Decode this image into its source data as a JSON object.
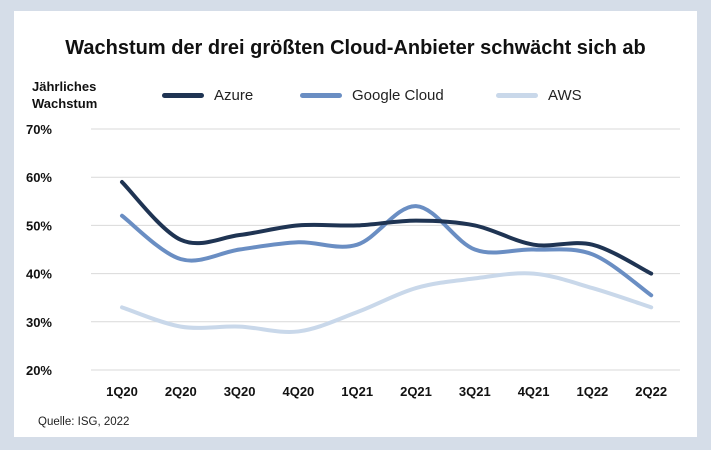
{
  "chart_data": {
    "type": "line",
    "title": "Wachstum der drei größten Cloud-Anbieter schwächt sich ab",
    "ylabel_line1": "Jährliches",
    "ylabel_line2": "Wachstum",
    "categories": [
      "1Q20",
      "2Q20",
      "3Q20",
      "4Q20",
      "1Q21",
      "2Q21",
      "3Q21",
      "4Q21",
      "1Q22",
      "2Q22"
    ],
    "yticks": [
      "20%",
      "30%",
      "40%",
      "50%",
      "60%",
      "70%"
    ],
    "ylim": [
      20,
      70
    ],
    "grid": true,
    "legend_position": "top",
    "series": [
      {
        "name": "Azure",
        "color": "#1f3453",
        "values": [
          59,
          47,
          48,
          50,
          50,
          51,
          50,
          46,
          46,
          40
        ]
      },
      {
        "name": "Google Cloud",
        "color": "#6a8ec3",
        "values": [
          52,
          43,
          45,
          46.5,
          46,
          54,
          45,
          45,
          44,
          35.5
        ]
      },
      {
        "name": "AWS",
        "color": "#c9d8ea",
        "values": [
          33,
          29,
          29,
          28,
          32,
          37,
          39,
          40,
          37,
          33
        ]
      }
    ],
    "source": "Quelle: ISG, 2022"
  }
}
